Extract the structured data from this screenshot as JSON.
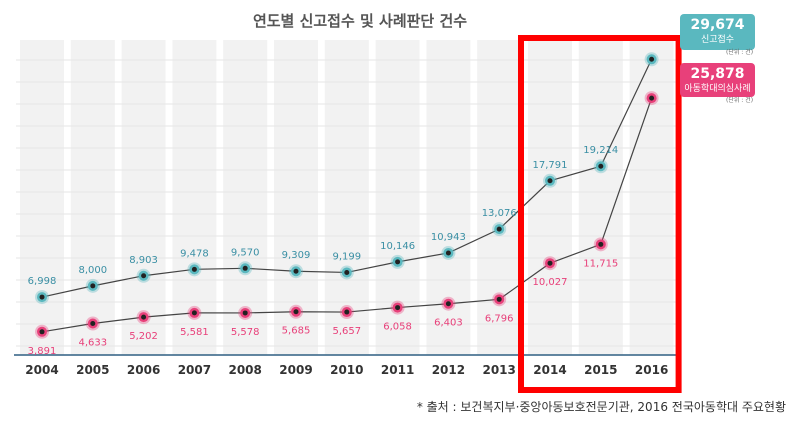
{
  "chart_data": {
    "type": "line",
    "title": "연도별 신고접수 및 사례판단 건수",
    "categories": [
      "2004",
      "2005",
      "2006",
      "2007",
      "2008",
      "2009",
      "2010",
      "2011",
      "2012",
      "2013",
      "2014",
      "2015",
      "2016"
    ],
    "series": [
      {
        "name": "신고접수",
        "values": [
          6998,
          8000,
          8903,
          9478,
          9570,
          9309,
          9199,
          10146,
          10943,
          13076,
          17791,
          19214,
          29674
        ],
        "labels": [
          "6,998",
          "8,000",
          "8,903",
          "9,478",
          "9,570",
          "9,309",
          "9,199",
          "10,146",
          "10,943",
          "13,076",
          "17,791",
          "19,214",
          "29,674"
        ],
        "color": "#3a9fb4"
      },
      {
        "name": "아동학대의심사례",
        "values": [
          3891,
          4633,
          5202,
          5581,
          5578,
          5685,
          5657,
          6058,
          6403,
          6796,
          10027,
          11715,
          25878
        ],
        "labels": [
          "3,891",
          "4,633",
          "5,202",
          "5,581",
          "5,578",
          "5,685",
          "5,657",
          "6,058",
          "6,403",
          "6,796",
          "10,027",
          "11,715",
          "25,878"
        ],
        "color": "#e8407a"
      }
    ],
    "callout_value_1": "29,674",
    "callout_value_2": "25,878",
    "unit_label": "(단위 : 건)",
    "highlight_years": [
      "2014",
      "2016"
    ],
    "highlight_color": "#ff0000"
  },
  "source_text": "* 출처 : 보건복지부·중앙아동보호전문기관, 2016 전국아동학대 주요현황",
  "colors": {
    "teal": "#5ab8bf",
    "pink": "#e8407a",
    "band": "#f2f2f2",
    "axis": "#2f5f82"
  }
}
